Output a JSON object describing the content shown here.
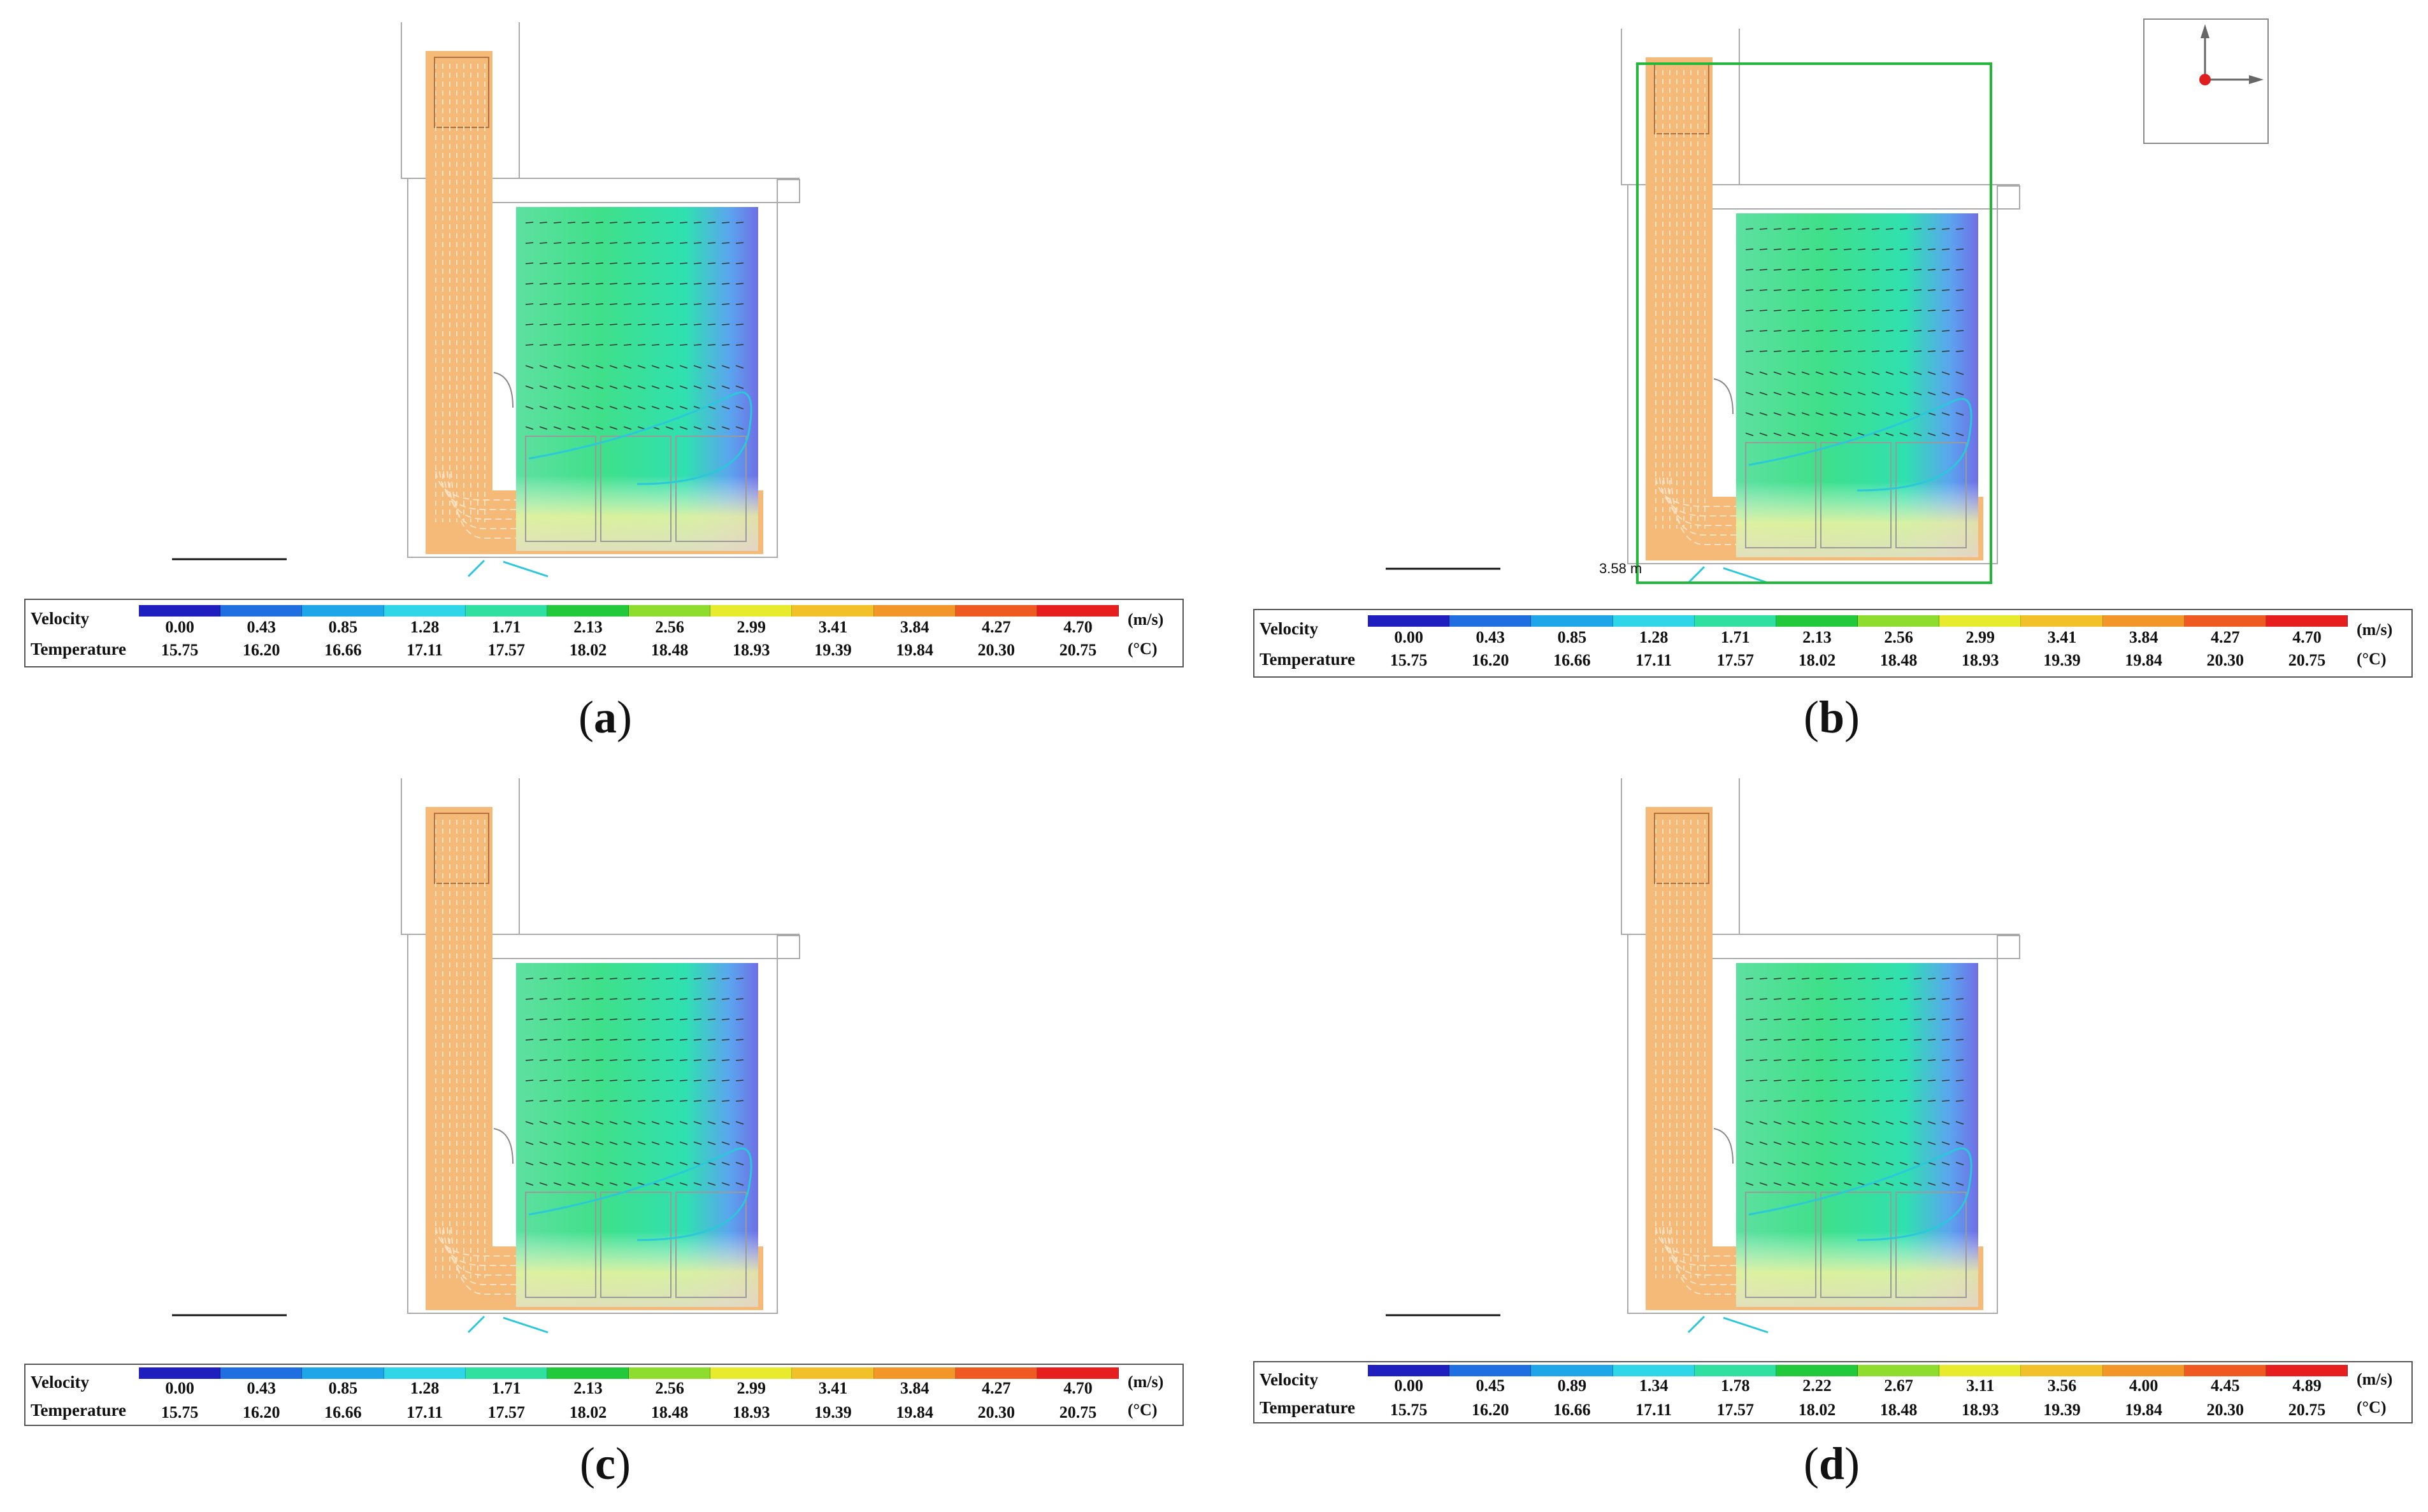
{
  "panels": [
    {
      "id": "a",
      "caption": {
        "open": "(",
        "letter": "a",
        "close": ")"
      },
      "legend": {
        "velocity_label": "Velocity",
        "temperature_label": "Temperature",
        "velocity_unit": "(m/s)",
        "temperature_unit": "(°C)",
        "velocity_values": [
          "0.00",
          "0.43",
          "0.85",
          "1.28",
          "1.71",
          "2.13",
          "2.56",
          "2.99",
          "3.41",
          "3.84",
          "4.27",
          "4.70"
        ],
        "temperature_values": [
          "15.75",
          "16.20",
          "16.66",
          "17.11",
          "17.57",
          "18.02",
          "18.48",
          "18.93",
          "19.39",
          "19.84",
          "20.30",
          "20.75"
        ]
      }
    },
    {
      "id": "b",
      "caption": {
        "open": "(",
        "letter": "b",
        "close": ")"
      },
      "dimension_label": "3.58 m",
      "legend": {
        "velocity_label": "Velocity",
        "temperature_label": "Temperature",
        "velocity_unit": "(m/s)",
        "temperature_unit": "(°C)",
        "velocity_values": [
          "0.00",
          "0.43",
          "0.85",
          "1.28",
          "1.71",
          "2.13",
          "2.56",
          "2.99",
          "3.41",
          "3.84",
          "4.27",
          "4.70"
        ],
        "temperature_values": [
          "15.75",
          "16.20",
          "16.66",
          "17.11",
          "17.57",
          "18.02",
          "18.48",
          "18.93",
          "19.39",
          "19.84",
          "20.30",
          "20.75"
        ]
      }
    },
    {
      "id": "c",
      "caption": {
        "open": "(",
        "letter": "c",
        "close": ")"
      },
      "legend": {
        "velocity_label": "Velocity",
        "temperature_label": "Temperature",
        "velocity_unit": "(m/s)",
        "temperature_unit": "(°C)",
        "velocity_values": [
          "0.00",
          "0.43",
          "0.85",
          "1.28",
          "1.71",
          "2.13",
          "2.56",
          "2.99",
          "3.41",
          "3.84",
          "4.27",
          "4.70"
        ],
        "temperature_values": [
          "15.75",
          "16.20",
          "16.66",
          "17.11",
          "17.57",
          "18.02",
          "18.48",
          "18.93",
          "19.39",
          "19.84",
          "20.30",
          "20.75"
        ]
      }
    },
    {
      "id": "d",
      "caption": {
        "open": "(",
        "letter": "d",
        "close": ")"
      },
      "legend": {
        "velocity_label": "Velocity",
        "temperature_label": "Temperature",
        "velocity_unit": "(m/s)",
        "temperature_unit": "(°C)",
        "velocity_values": [
          "0.00",
          "0.45",
          "0.89",
          "1.34",
          "1.78",
          "2.22",
          "2.67",
          "3.11",
          "3.56",
          "4.00",
          "4.45",
          "4.89"
        ],
        "temperature_values": [
          "15.75",
          "16.20",
          "16.66",
          "17.11",
          "17.57",
          "18.02",
          "18.48",
          "18.93",
          "19.39",
          "19.84",
          "20.30",
          "20.75"
        ]
      }
    }
  ],
  "colormap": [
    "#1f1fbf",
    "#1f6fe0",
    "#1fa6e8",
    "#2fd6e8",
    "#2fe0a0",
    "#22c93a",
    "#8edc2e",
    "#e8ea2e",
    "#f2c12a",
    "#f2962a",
    "#ee5a22",
    "#e61e1e"
  ],
  "flow_colors": {
    "duct": "#f5b978",
    "cool": "#6f6fe6",
    "mid": "#2fe0b0",
    "warm": "#7ce85a",
    "floor": "#f4f4a0"
  }
}
